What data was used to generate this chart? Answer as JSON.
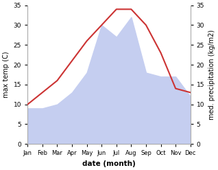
{
  "months": [
    "Jan",
    "Feb",
    "Mar",
    "Apr",
    "May",
    "Jun",
    "Jul",
    "Aug",
    "Sep",
    "Oct",
    "Nov",
    "Dec"
  ],
  "temperature": [
    10,
    13,
    16,
    21,
    26,
    30,
    34,
    34,
    30,
    23,
    14,
    13
  ],
  "precipitation": [
    9,
    9,
    10,
    13,
    18,
    30,
    27,
    32,
    18,
    17,
    17,
    12
  ],
  "temp_color": "#cc3333",
  "precip_color": "#c5cef0",
  "ylim": [
    0,
    35
  ],
  "yticks": [
    0,
    5,
    10,
    15,
    20,
    25,
    30,
    35
  ],
  "ylabel_left": "max temp (C)",
  "ylabel_right": "med. precipitation (kg/m2)",
  "xlabel": "date (month)",
  "background_color": "#ffffff"
}
